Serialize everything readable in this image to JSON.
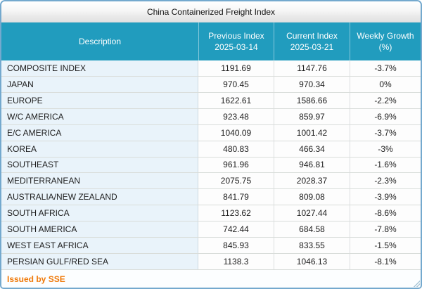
{
  "window": {
    "title": "China Containerized Freight Index"
  },
  "table": {
    "columns": {
      "description": {
        "line1": "Description",
        "line2": ""
      },
      "previous": {
        "line1": "Previous Index",
        "line2": "2025-03-14"
      },
      "current": {
        "line1": "Current Index",
        "line2": "2025-03-21"
      },
      "growth": {
        "line1": "Weekly Growth",
        "line2": "(%)"
      }
    },
    "rows": [
      {
        "description": "COMPOSITE INDEX",
        "previous": "1191.69",
        "current": "1147.76",
        "growth": "-3.7%"
      },
      {
        "description": "JAPAN",
        "previous": "970.45",
        "current": "970.34",
        "growth": "0%"
      },
      {
        "description": "EUROPE",
        "previous": "1622.61",
        "current": "1586.66",
        "growth": "-2.2%"
      },
      {
        "description": "W/C AMERICA",
        "previous": "923.48",
        "current": "859.97",
        "growth": "-6.9%"
      },
      {
        "description": "E/C AMERICA",
        "previous": "1040.09",
        "current": "1001.42",
        "growth": "-3.7%"
      },
      {
        "description": "KOREA",
        "previous": "480.83",
        "current": "466.34",
        "growth": "-3%"
      },
      {
        "description": "SOUTHEAST",
        "previous": "961.96",
        "current": "946.81",
        "growth": "-1.6%"
      },
      {
        "description": "MEDITERRANEAN",
        "previous": "2075.75",
        "current": "2028.37",
        "growth": "-2.3%"
      },
      {
        "description": "AUSTRALIA/NEW ZEALAND",
        "previous": "841.79",
        "current": "809.08",
        "growth": "-3.9%"
      },
      {
        "description": "SOUTH AFRICA",
        "previous": "1123.62",
        "current": "1027.44",
        "growth": "-8.6%"
      },
      {
        "description": "SOUTH AMERICA",
        "previous": "742.44",
        "current": "684.58",
        "growth": "-7.8%"
      },
      {
        "description": "WEST EAST AFRICA",
        "previous": "845.93",
        "current": "833.55",
        "growth": "-1.5%"
      },
      {
        "description": "PERSIAN GULF/RED SEA",
        "previous": "1138.3",
        "current": "1046.13",
        "growth": "-8.1%"
      }
    ]
  },
  "footer": {
    "issued_by": "Issued by SSE"
  },
  "colors": {
    "header_background": "#219cbe",
    "header_text": "#ffffff",
    "description_cell_background": "#e9f3fa",
    "window_border": "#74a9ce",
    "footer_text": "#f07a0a",
    "row_border": "#d9ddda",
    "cell_text": "#1e1e1e"
  }
}
